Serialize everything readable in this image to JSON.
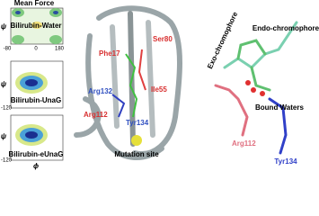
{
  "left_panel": {
    "title": "Mean Force",
    "y_axis_label": "ψ",
    "x_axis_label": "ϕ",
    "plots": [
      {
        "label": "Bilirubin-Water",
        "tick_labels": [
          "-80",
          "0",
          "180"
        ]
      },
      {
        "label": "Bilirubin-UnaG",
        "tick_labels": [
          "-120"
        ]
      },
      {
        "label": "Bilirubin-eUnaG",
        "tick_labels": [
          "-120"
        ]
      }
    ]
  },
  "protein_panel": {
    "labels": [
      "Phe17",
      "Ser80",
      "Ile55",
      "Arg132",
      "Arg112",
      "Tyr134",
      "Mutation site"
    ]
  },
  "chromophore_panel": {
    "labels": [
      "Exo-chromophore",
      "Endo-chromophore",
      "Bound Waters",
      "Arg112",
      "Tyr134"
    ]
  }
}
